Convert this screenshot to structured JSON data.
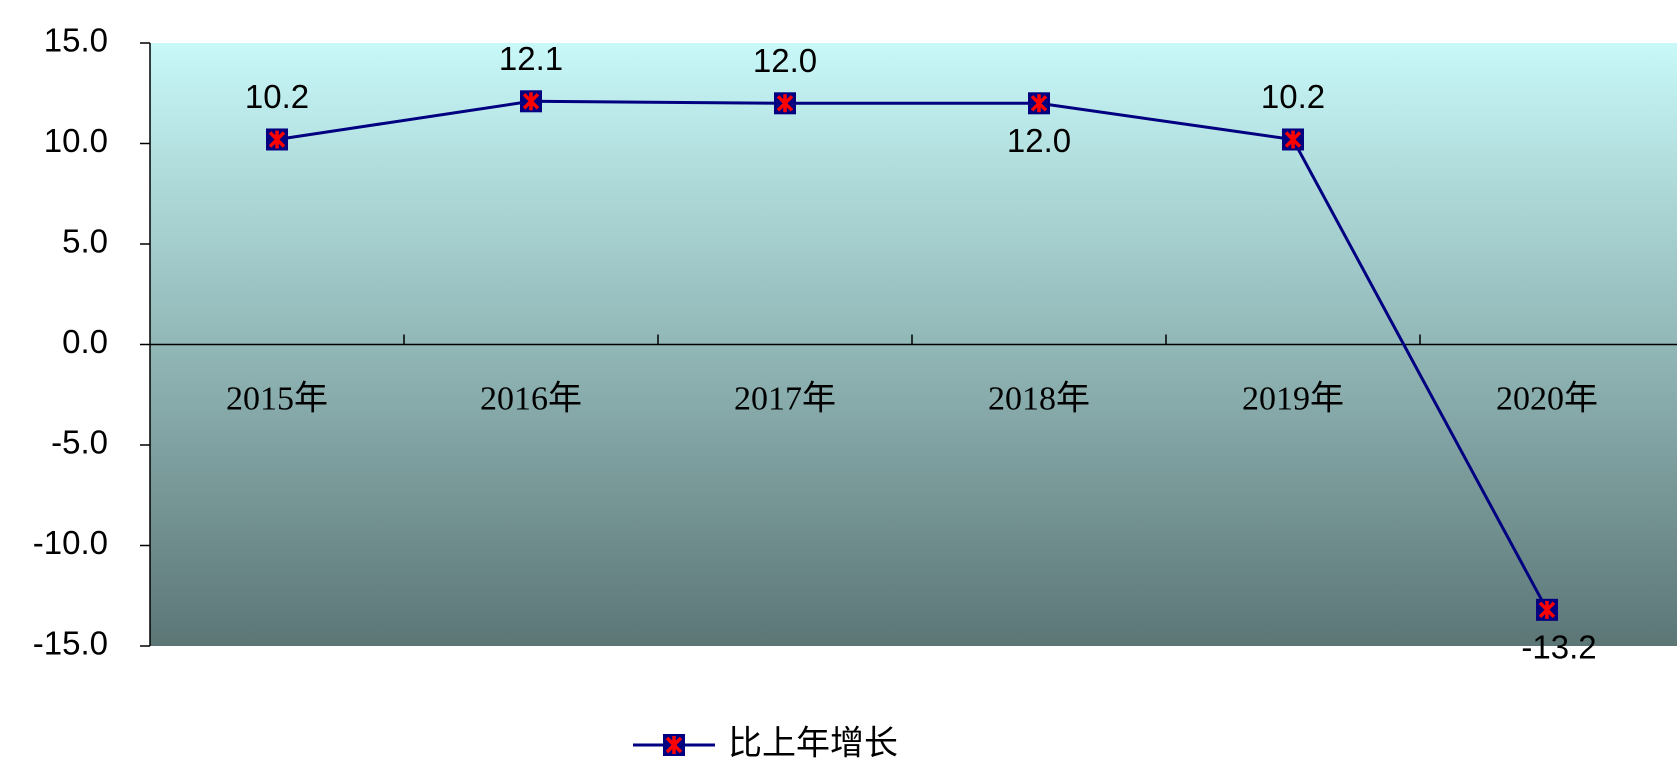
{
  "chart_data": {
    "type": "line",
    "categories": [
      "2015年",
      "2016年",
      "2017年",
      "2018年",
      "2019年",
      "2020年"
    ],
    "series": [
      {
        "name": "比上年增长",
        "color": "#000080",
        "marker_color": "#ff0000",
        "values": [
          10.2,
          12.1,
          12.0,
          12.0,
          10.2,
          -13.2
        ],
        "value_labels": [
          "10.2",
          "12.1",
          "12.0",
          "12.0",
          "10.2",
          "-13.2"
        ]
      }
    ],
    "ylim": [
      -15,
      15
    ],
    "yticks": [
      {
        "value": -15,
        "label": "-15.0"
      },
      {
        "value": -10,
        "label": "-10.0"
      },
      {
        "value": -5,
        "label": "-5.0"
      },
      {
        "value": 0,
        "label": "0.0"
      },
      {
        "value": 5,
        "label": "5.0"
      },
      {
        "value": 10,
        "label": "10.0"
      },
      {
        "value": 15,
        "label": "15.0"
      }
    ],
    "legend": "bottom"
  }
}
